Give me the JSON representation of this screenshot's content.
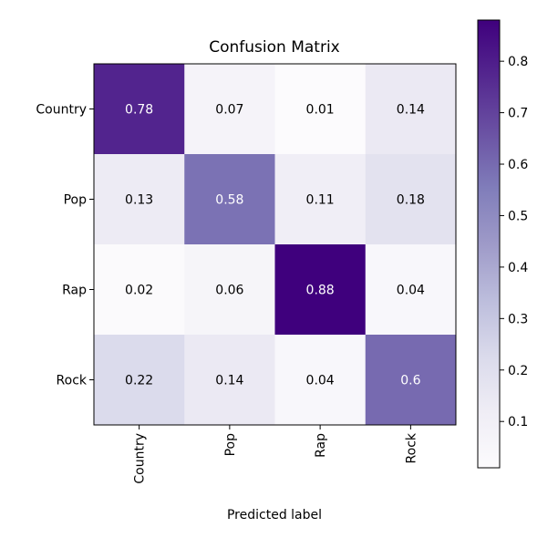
{
  "chart_data": {
    "type": "heatmap",
    "title": "Confusion Matrix",
    "xlabel": "Predicted label",
    "ylabel": "",
    "x_categories": [
      "Country",
      "Pop",
      "Rap",
      "Rock"
    ],
    "y_categories": [
      "Country",
      "Pop",
      "Rap",
      "Rock"
    ],
    "values": [
      [
        0.78,
        0.07,
        0.01,
        0.14
      ],
      [
        0.13,
        0.58,
        0.11,
        0.18
      ],
      [
        0.02,
        0.06,
        0.88,
        0.04
      ],
      [
        0.22,
        0.14,
        0.04,
        0.6
      ]
    ],
    "colormap": "Purples",
    "color_range": [
      0.01,
      0.88
    ],
    "colorbar": {
      "ticks": [
        "0.1",
        "0.2",
        "0.3",
        "0.4",
        "0.5",
        "0.6",
        "0.7",
        "0.8"
      ],
      "tick_values": [
        0.1,
        0.2,
        0.3,
        0.4,
        0.5,
        0.6,
        0.7,
        0.8
      ]
    },
    "text_threshold": 0.44,
    "grid": false
  }
}
